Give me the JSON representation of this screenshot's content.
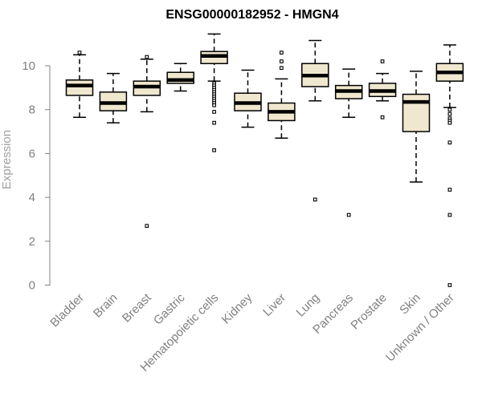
{
  "chart_data": {
    "type": "box",
    "title": "ENSG00000182952 - HMGN4",
    "xlabel": "",
    "ylabel": "Expression",
    "ylim": [
      0,
      11.5
    ],
    "yticks": [
      0,
      2,
      4,
      6,
      8,
      10
    ],
    "colors": {
      "box_fill": "#efe8cf",
      "stroke": "#000000",
      "axis": "#808080",
      "label": "#808080"
    },
    "categories": [
      "Bladder",
      "Brain",
      "Breast",
      "Gastric",
      "Hematopoietic cells",
      "Kidney",
      "Liver",
      "Lung",
      "Pancreas",
      "Prostate",
      "Skin",
      "Unknown / Other"
    ],
    "series": [
      {
        "category": "Bladder",
        "min": 7.65,
        "q1": 8.65,
        "median": 9.1,
        "q3": 9.35,
        "max": 10.5,
        "outliers": [
          10.6
        ]
      },
      {
        "category": "Brain",
        "min": 7.4,
        "q1": 7.95,
        "median": 8.3,
        "q3": 8.8,
        "max": 9.65,
        "outliers": []
      },
      {
        "category": "Breast",
        "min": 7.9,
        "q1": 8.65,
        "median": 9.05,
        "q3": 9.3,
        "max": 10.3,
        "outliers": [
          10.4,
          2.7
        ]
      },
      {
        "category": "Gastric",
        "min": 8.85,
        "q1": 9.2,
        "median": 9.35,
        "q3": 9.7,
        "max": 10.1,
        "outliers": []
      },
      {
        "category": "Hematopoietic cells",
        "min": 9.3,
        "q1": 10.1,
        "median": 10.45,
        "q3": 10.65,
        "max": 11.45,
        "outliers": [
          9.2,
          9.1,
          9.0,
          8.9,
          8.8,
          8.7,
          8.6,
          8.5,
          8.4,
          8.3,
          8.2,
          7.9,
          7.4,
          6.15
        ]
      },
      {
        "category": "Kidney",
        "min": 7.2,
        "q1": 7.95,
        "median": 8.3,
        "q3": 8.75,
        "max": 9.8,
        "outliers": []
      },
      {
        "category": "Liver",
        "min": 6.7,
        "q1": 7.5,
        "median": 7.9,
        "q3": 8.3,
        "max": 9.4,
        "outliers": [
          10.6,
          10.2,
          9.9
        ]
      },
      {
        "category": "Lung",
        "min": 8.4,
        "q1": 9.05,
        "median": 9.55,
        "q3": 10.1,
        "max": 11.15,
        "outliers": [
          3.9
        ]
      },
      {
        "category": "Pancreas",
        "min": 7.65,
        "q1": 8.5,
        "median": 8.85,
        "q3": 9.1,
        "max": 9.85,
        "outliers": [
          3.2
        ]
      },
      {
        "category": "Prostate",
        "min": 8.4,
        "q1": 8.6,
        "median": 8.85,
        "q3": 9.2,
        "max": 9.65,
        "outliers": [
          10.2,
          7.65
        ]
      },
      {
        "category": "Skin",
        "min": 4.7,
        "q1": 7.0,
        "median": 8.35,
        "q3": 8.7,
        "max": 9.75,
        "outliers": []
      },
      {
        "category": "Unknown / Other",
        "min": 8.1,
        "q1": 9.3,
        "median": 9.7,
        "q3": 10.1,
        "max": 10.95,
        "outliers": [
          8.0,
          7.8,
          7.6,
          7.5,
          7.4,
          6.5,
          4.35,
          3.2,
          0.0
        ]
      }
    ]
  }
}
